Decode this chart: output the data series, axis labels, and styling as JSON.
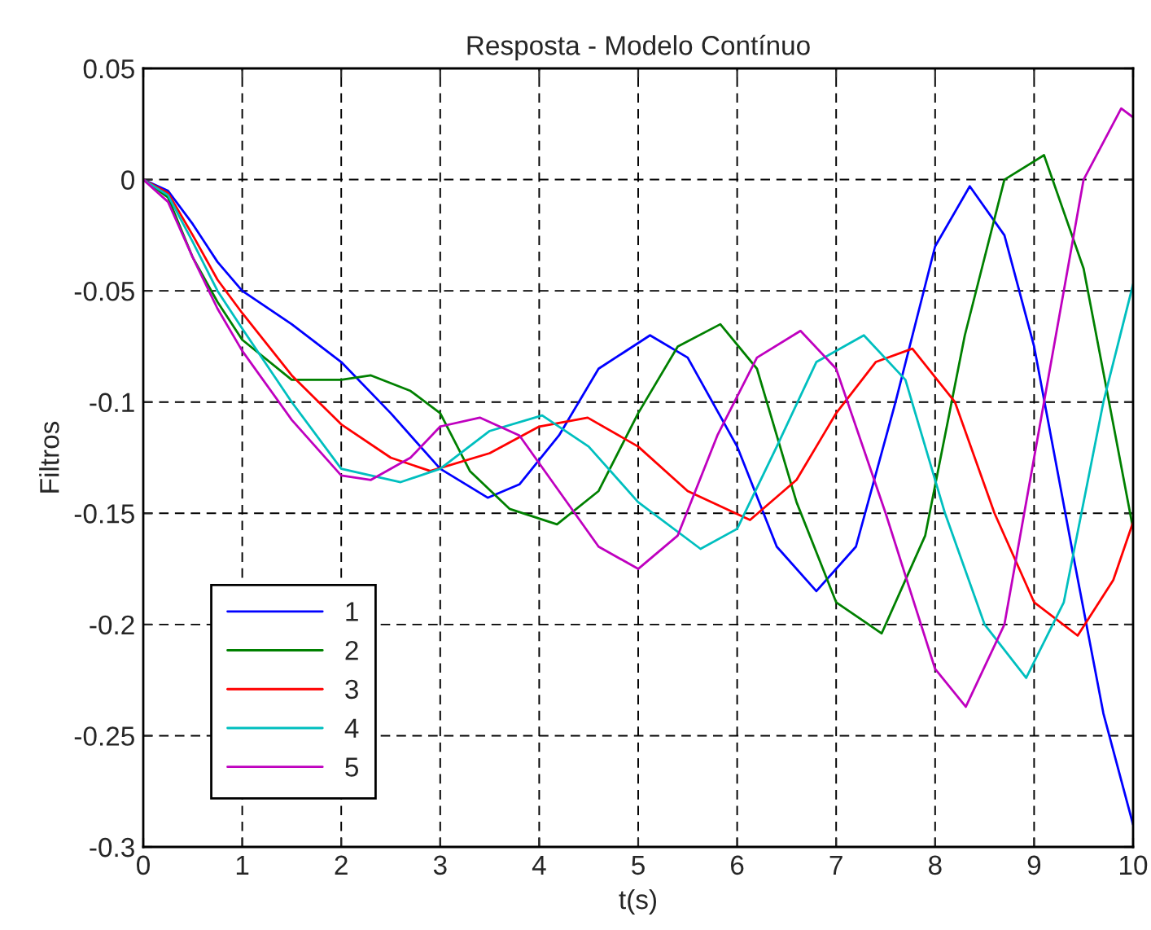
{
  "chart_data": {
    "type": "line",
    "title": "Resposta - Modelo Contínuo",
    "xlabel": "t(s)",
    "ylabel": "Filtros",
    "xlim": [
      0,
      10
    ],
    "xticks": [
      0,
      1,
      2,
      3,
      4,
      5,
      6,
      7,
      8,
      9,
      10
    ],
    "ylim": [
      -0.3,
      0.05
    ],
    "yticks": [
      -0.3,
      -0.25,
      -0.2,
      -0.15,
      -0.1,
      -0.05,
      0,
      0.05
    ],
    "grid": true,
    "legend": "bottom left",
    "line_style": "solid",
    "marker": "none",
    "series": [
      {
        "name": "1",
        "color": "#0000ff",
        "x": [
          0,
          0.25,
          0.5,
          0.75,
          1,
          1.5,
          2,
          2.5,
          3,
          3.48,
          3.8,
          4.2,
          4.6,
          5.12,
          5.5,
          6,
          6.4,
          6.8,
          7.2,
          7.6,
          8,
          8.35,
          8.7,
          9,
          9.4,
          9.7,
          10
        ],
        "values": [
          0,
          -0.005,
          -0.02,
          -0.037,
          -0.05,
          -0.065,
          -0.082,
          -0.105,
          -0.13,
          -0.143,
          -0.137,
          -0.115,
          -0.085,
          -0.07,
          -0.08,
          -0.12,
          -0.165,
          -0.185,
          -0.165,
          -0.1,
          -0.03,
          -0.003,
          -0.025,
          -0.075,
          -0.17,
          -0.24,
          -0.29
        ]
      },
      {
        "name": "2",
        "color": "#008000",
        "x": [
          0,
          0.25,
          0.5,
          0.75,
          1,
          1.5,
          2,
          2.3,
          2.7,
          3,
          3.3,
          3.7,
          4.18,
          4.6,
          5,
          5.4,
          5.83,
          6.2,
          6.6,
          7,
          7.46,
          7.9,
          8.3,
          8.7,
          9.1,
          9.5,
          9.8,
          10
        ],
        "values": [
          0,
          -0.008,
          -0.035,
          -0.055,
          -0.072,
          -0.09,
          -0.09,
          -0.088,
          -0.095,
          -0.105,
          -0.131,
          -0.148,
          -0.155,
          -0.14,
          -0.105,
          -0.075,
          -0.065,
          -0.085,
          -0.145,
          -0.19,
          -0.204,
          -0.16,
          -0.07,
          0.0,
          0.011,
          -0.04,
          -0.11,
          -0.157
        ]
      },
      {
        "name": "3",
        "color": "#ff0000",
        "x": [
          0,
          0.25,
          0.5,
          0.75,
          1,
          1.5,
          2,
          2.5,
          2.9,
          3.5,
          4,
          4.49,
          5,
          5.5,
          6.13,
          6.6,
          7,
          7.4,
          7.77,
          8.2,
          8.6,
          9,
          9.44,
          9.8,
          10
        ],
        "values": [
          0,
          -0.006,
          -0.025,
          -0.045,
          -0.06,
          -0.088,
          -0.11,
          -0.125,
          -0.131,
          -0.123,
          -0.111,
          -0.107,
          -0.12,
          -0.14,
          -0.153,
          -0.135,
          -0.105,
          -0.082,
          -0.076,
          -0.1,
          -0.15,
          -0.19,
          -0.205,
          -0.18,
          -0.154
        ]
      },
      {
        "name": "4",
        "color": "#00bfbf",
        "x": [
          0,
          0.25,
          0.5,
          0.75,
          1,
          1.5,
          2,
          2.6,
          3,
          3.5,
          4.03,
          4.5,
          5,
          5.63,
          6,
          6.4,
          6.8,
          7.28,
          7.7,
          8.1,
          8.5,
          8.92,
          9.3,
          9.7,
          10
        ],
        "values": [
          0,
          -0.007,
          -0.028,
          -0.05,
          -0.067,
          -0.1,
          -0.13,
          -0.136,
          -0.13,
          -0.113,
          -0.106,
          -0.12,
          -0.145,
          -0.166,
          -0.157,
          -0.12,
          -0.082,
          -0.07,
          -0.09,
          -0.15,
          -0.2,
          -0.224,
          -0.19,
          -0.1,
          -0.047
        ]
      },
      {
        "name": "5",
        "color": "#bf00bf",
        "x": [
          0,
          0.25,
          0.5,
          0.75,
          1,
          1.5,
          2,
          2.3,
          2.7,
          3,
          3.4,
          3.8,
          4.2,
          4.6,
          5,
          5.4,
          5.8,
          6.2,
          6.64,
          7,
          7.5,
          8,
          8.31,
          8.7,
          9.1,
          9.5,
          9.88,
          10
        ],
        "values": [
          0,
          -0.01,
          -0.035,
          -0.058,
          -0.077,
          -0.108,
          -0.133,
          -0.135,
          -0.125,
          -0.111,
          -0.107,
          -0.115,
          -0.14,
          -0.165,
          -0.175,
          -0.16,
          -0.115,
          -0.08,
          -0.068,
          -0.085,
          -0.15,
          -0.22,
          -0.237,
          -0.2,
          -0.1,
          0.0,
          0.032,
          0.028
        ]
      }
    ]
  }
}
